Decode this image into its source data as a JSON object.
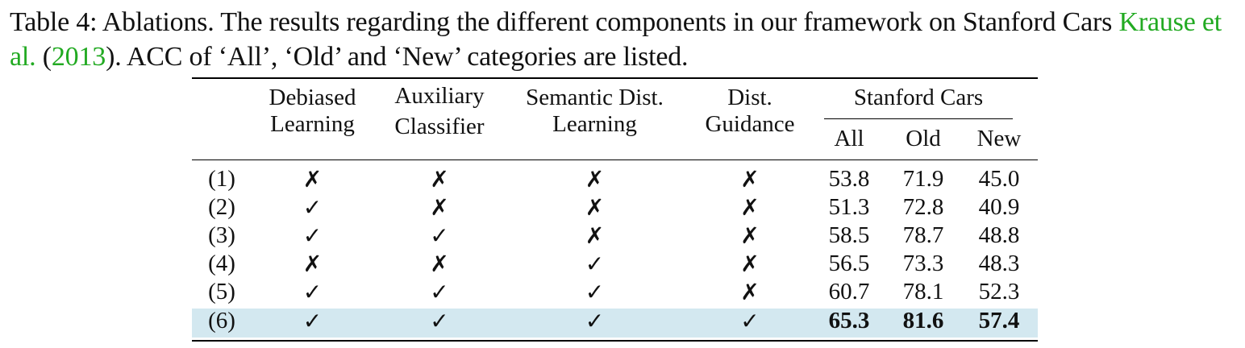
{
  "caption": {
    "prefix": "Table 4: Ablations. The results regarding the different components in our framework on Stanford Cars ",
    "cite_author": "Krause et al.",
    "cite_open": " (",
    "cite_year": "2013",
    "cite_close": ")",
    "suffix": ". ACC of ‘All’, ‘Old’ and ‘New’ categories are listed."
  },
  "table": {
    "headers": {
      "debiased": [
        "Debiased",
        "Learning"
      ],
      "auxiliary": [
        "Auxiliary",
        "Classifier"
      ],
      "semantic": [
        "Semantic Dist.",
        "Learning"
      ],
      "guidance": [
        "Dist.",
        "Guidance"
      ],
      "group": "Stanford Cars",
      "all": "All",
      "old": "Old",
      "new": "New"
    },
    "marks": {
      "yes": "✓",
      "no": "✗"
    },
    "rows": [
      {
        "id": "(1)",
        "debiased": "✗",
        "auxiliary": "✗",
        "semantic": "✗",
        "guidance": "✗",
        "all": "53.8",
        "old": "71.9",
        "new": "45.0"
      },
      {
        "id": "(2)",
        "debiased": "✓",
        "auxiliary": "✗",
        "semantic": "✗",
        "guidance": "✗",
        "all": "51.3",
        "old": "72.8",
        "new": "40.9"
      },
      {
        "id": "(3)",
        "debiased": "✓",
        "auxiliary": "✓",
        "semantic": "✗",
        "guidance": "✗",
        "all": "58.5",
        "old": "78.7",
        "new": "48.8"
      },
      {
        "id": "(4)",
        "debiased": "✗",
        "auxiliary": "✗",
        "semantic": "✓",
        "guidance": "✗",
        "all": "56.5",
        "old": "73.3",
        "new": "48.3"
      },
      {
        "id": "(5)",
        "debiased": "✓",
        "auxiliary": "✓",
        "semantic": "✓",
        "guidance": "✗",
        "all": "60.7",
        "old": "78.1",
        "new": "52.3"
      },
      {
        "id": "(6)",
        "debiased": "✓",
        "auxiliary": "✓",
        "semantic": "✓",
        "guidance": "✓",
        "all": "65.3",
        "old": "81.6",
        "new": "57.4"
      }
    ],
    "highlight_color": "#d3e8f0",
    "citation_color": "#22aa22"
  }
}
